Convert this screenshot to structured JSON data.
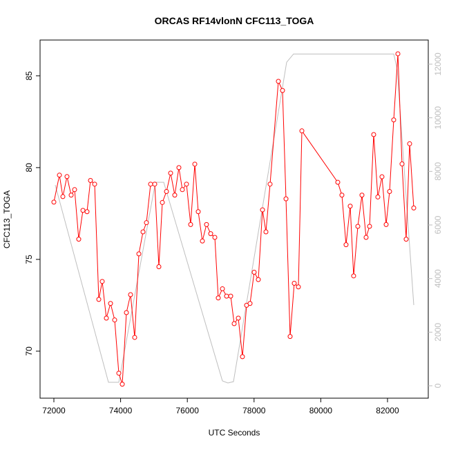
{
  "chart_data": {
    "type": "line",
    "title": "ORCAS RF14vlonN CFC113_TOGA",
    "xlabel": "UTC Seconds",
    "ylabel": "CFC113_TOGA",
    "xlim": [
      71586,
      83222
    ],
    "xticks": [
      72000,
      74000,
      76000,
      78000,
      80000,
      82000
    ],
    "ylim": [
      67.44,
      86.95
    ],
    "yticks": [
      70,
      75,
      80,
      85
    ],
    "y2lim": [
      -463,
      12901
    ],
    "y2ticks": [
      0,
      2000,
      4000,
      6000,
      8000,
      10000,
      12000
    ],
    "series": [
      {
        "name": "CFC113_TOGA",
        "color": "#ff0000",
        "x": [
          72000,
          72166,
          72269,
          72393,
          72518,
          72621,
          72745,
          72870,
          72994,
          73097,
          73222,
          73346,
          73449,
          73573,
          73698,
          73822,
          73946,
          74050,
          74174,
          74298,
          74422,
          74547,
          74671,
          74774,
          74899,
          75023,
          75147,
          75251,
          75375,
          75499,
          75623,
          75747,
          75851,
          75975,
          76099,
          76224,
          76327,
          76451,
          76575,
          76700,
          76824,
          76927,
          77052,
          77176,
          77300,
          77404,
          77528,
          77652,
          77776,
          77880,
          78004,
          78128,
          78253,
          78356,
          78480,
          78729,
          78853,
          78957,
          79081,
          79205,
          79329,
          79433,
          80509,
          80633,
          80757,
          80882,
          80985,
          81110,
          81234,
          81358,
          81462,
          81586,
          81710,
          81834,
          81959,
          82062,
          82186,
          82311,
          82435,
          82559,
          82663,
          82787
        ],
        "values": [
          78.12,
          79.59,
          78.42,
          79.51,
          78.5,
          78.8,
          76.1,
          77.67,
          77.6,
          79.3,
          79.1,
          72.82,
          73.8,
          71.8,
          72.6,
          71.7,
          68.8,
          68.2,
          72.1,
          73.08,
          70.75,
          75.3,
          76.5,
          77.0,
          79.1,
          79.1,
          74.6,
          78.1,
          78.7,
          79.7,
          78.5,
          80.0,
          78.8,
          79.1,
          76.9,
          80.19,
          77.6,
          76.0,
          76.9,
          76.4,
          76.2,
          72.9,
          73.4,
          73.0,
          73.0,
          71.5,
          71.8,
          69.7,
          72.5,
          72.6,
          74.3,
          73.9,
          77.7,
          76.5,
          79.1,
          84.7,
          84.2,
          78.3,
          70.8,
          73.7,
          73.5,
          82.0,
          79.2,
          78.5,
          75.8,
          77.9,
          74.1,
          76.8,
          78.5,
          76.2,
          76.8,
          81.8,
          78.4,
          79.5,
          76.9,
          78.7,
          82.6,
          86.2,
          80.2,
          76.1,
          81.3,
          77.8
        ]
      },
      {
        "color": "#bebebe",
        "axis": "y2",
        "x": [
          72041,
          73636,
          73946,
          75044,
          75292,
          77052,
          77217,
          77383,
          78977,
          79184,
          82186,
          82290,
          82787
        ],
        "values": [
          7490,
          129,
          129,
          7593,
          7593,
          180,
          103,
          154,
          12072,
          12381,
          12381,
          11815,
          3012
        ]
      }
    ]
  }
}
